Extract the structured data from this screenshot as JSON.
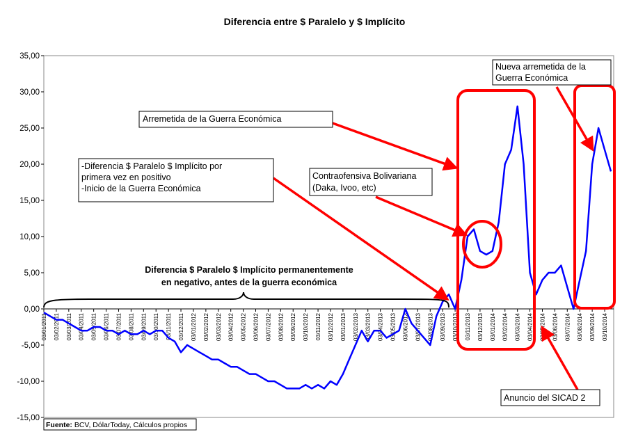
{
  "chart_data": {
    "type": "line",
    "title": "Diferencia entre $ Paralelo y $ Implícito",
    "categories": [
      "03/01/2011",
      null,
      "03/02/2011",
      null,
      "03/03/2011",
      null,
      "03/04/2011",
      null,
      "03/05/2011",
      null,
      "03/06/2011",
      null,
      "03/07/2011",
      null,
      "03/08/2011",
      null,
      "03/09/2011",
      null,
      "03/10/2011",
      null,
      "03/11/2011",
      null,
      "03/12/2011",
      null,
      "03/01/2012",
      null,
      "03/02/2012",
      null,
      "03/03/2012",
      null,
      "03/04/2012",
      null,
      "03/05/2012",
      null,
      "03/06/2012",
      null,
      "03/07/2012",
      null,
      "03/08/2012",
      null,
      "03/09/2012",
      null,
      "03/10/2012",
      null,
      "03/11/2012",
      null,
      "03/12/2012",
      null,
      "03/01/2013",
      null,
      "03/02/2013",
      null,
      "03/03/2013",
      null,
      "03/04/2013",
      null,
      "03/05/2013",
      null,
      "03/06/2013",
      null,
      "03/07/2013",
      null,
      "03/08/2013",
      null,
      "03/09/2013",
      null,
      "03/10/2013",
      null,
      "03/11/2013",
      null,
      "03/12/2013",
      null,
      "03/01/2014",
      null,
      "03/02/2014",
      null,
      "03/03/2014",
      null,
      "03/04/2014",
      null,
      "03/05/2014",
      null,
      "03/06/2014",
      null,
      "03/07/2014",
      null,
      "03/08/2014",
      null,
      "03/09/2014",
      null,
      "03/10/2014",
      null
    ],
    "series": [
      {
        "color": "#0000ff",
        "values": [
          -0.5,
          -1,
          -1.5,
          -1.5,
          -2,
          -2.5,
          -3,
          -3,
          -2.5,
          -2.5,
          -3,
          -3,
          -3.5,
          -3,
          -3.5,
          -3.5,
          -3,
          -3.5,
          -3,
          -3,
          -4,
          -4.5,
          -6,
          -5,
          -5.5,
          -6,
          -6.5,
          -7,
          -7,
          -7.5,
          -8,
          -8,
          -8.5,
          -9,
          -9,
          -9.5,
          -10,
          -10,
          -10.5,
          -11,
          -11,
          -11,
          -10.5,
          -11,
          -10.5,
          -11,
          -10,
          -10.5,
          -9,
          -7,
          -5,
          -3,
          -4.5,
          -3,
          -3,
          -4,
          -3.5,
          -3,
          0,
          -2,
          -3,
          -4,
          -5,
          -1,
          1,
          2,
          0,
          4,
          10,
          11,
          8,
          7.5,
          8,
          12,
          20,
          22,
          28,
          20,
          5,
          2,
          4,
          5,
          5,
          6,
          3,
          0,
          4,
          8,
          20,
          25,
          22,
          19
        ]
      }
    ],
    "ylim": [
      -15,
      35
    ],
    "yticks": [
      {
        "value": -15,
        "label": "-15,00"
      },
      {
        "value": -10,
        "label": "-10,00"
      },
      {
        "value": -5,
        "label": "-5,00"
      },
      {
        "value": 0,
        "label": "0,00"
      },
      {
        "value": 5,
        "label": "5,00"
      },
      {
        "value": 10,
        "label": "10,00"
      },
      {
        "value": 15,
        "label": "15,00"
      },
      {
        "value": 20,
        "label": "20,00"
      },
      {
        "value": 25,
        "label": "25,00"
      },
      {
        "value": 30,
        "label": "30,00"
      },
      {
        "value": 35,
        "label": "35,00"
      }
    ],
    "annotations": {
      "arremetida": "Arremetida de la Guerra Económica",
      "inicio": [
        "-Diferencia $ Paralelo $ Implícito por",
        "primera vez en positivo",
        "-Inicio de la Guerra Económica"
      ],
      "contraofensiva": [
        "Contraofensiva Bolivariana",
        "(Daka, Ivoo, etc)"
      ],
      "nueva": [
        "Nueva arremetida de la",
        "Guerra Económica"
      ],
      "sicad": "Anuncio del SICAD 2",
      "negativo": [
        "Diferencia $ Paralelo $ Implícito permanentemente",
        "en negativo, antes de la guerra económica"
      ]
    },
    "source_label": "Fuente:",
    "source": "BCV, DólarToday, Cálculos propios"
  }
}
